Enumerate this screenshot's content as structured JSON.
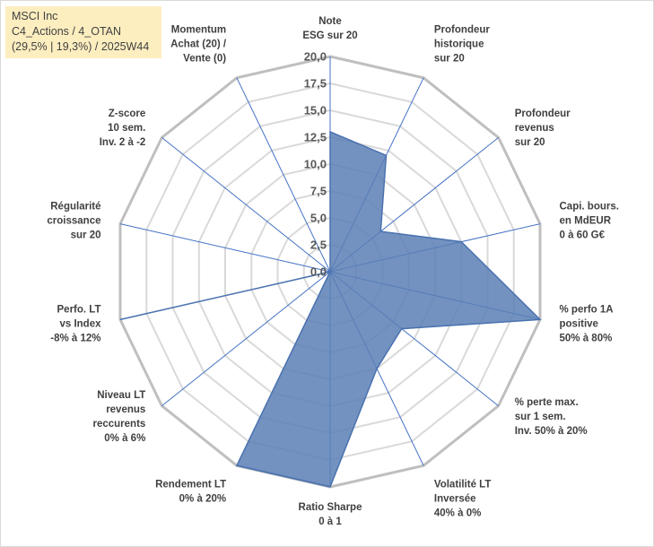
{
  "info_box": {
    "line1": "MSCI Inc",
    "line2": "C4_Actions / 4_OTAN",
    "line3": "(29,5% | 19,3%) / 2025W44"
  },
  "colors": {
    "fill": "#5b7fb5",
    "stroke": "#4a72b0",
    "spoke": "#4472c4",
    "grid": "#d9d9d9",
    "outer_ring": "#bfbfbf",
    "info_bg": "#fdeec0"
  },
  "chart_data": {
    "type": "radar",
    "rmin": 0,
    "rmax": 20,
    "ticks": [
      "0,0",
      "2,5",
      "5,0",
      "7,5",
      "10,0",
      "12,5",
      "15,0",
      "17,5",
      "20,0"
    ],
    "tick_values": [
      0,
      2.5,
      5,
      7.5,
      10,
      12.5,
      15,
      17.5,
      20
    ],
    "categories": [
      [
        "Note",
        "ESG sur 20"
      ],
      [
        "Profondeur",
        "historique",
        "sur 20"
      ],
      [
        "Profondeur",
        "revenus",
        "sur 20"
      ],
      [
        "Capi. bours.",
        "en MdEUR",
        "0 à 60 G€"
      ],
      [
        "% perfo 1A",
        "positive",
        "50% à 80%"
      ],
      [
        "% perte max.",
        "sur 1 sem.",
        "Inv. 50% à 20%"
      ],
      [
        "Volatilité LT",
        "Inversée",
        "40% à 0%"
      ],
      [
        "Ratio Sharpe",
        "0 à 1"
      ],
      [
        "Rendement LT",
        "0% à 20%"
      ],
      [
        "Niveau LT",
        "revenus",
        "reccurents",
        "0% à 6%"
      ],
      [
        "Perfo. LT",
        "vs Index",
        "-8% à 12%"
      ],
      [
        "Régularité",
        "croissance",
        "sur 20"
      ],
      [
        "Z-score",
        "10 sem.",
        "Inv. 2 à -2"
      ],
      [
        "Momentum",
        "Achat (20) /",
        "Vente (0)"
      ]
    ],
    "values": [
      13,
      12,
      6,
      12.5,
      20,
      8.5,
      10,
      20,
      20,
      0,
      20,
      0,
      0,
      0
    ]
  }
}
